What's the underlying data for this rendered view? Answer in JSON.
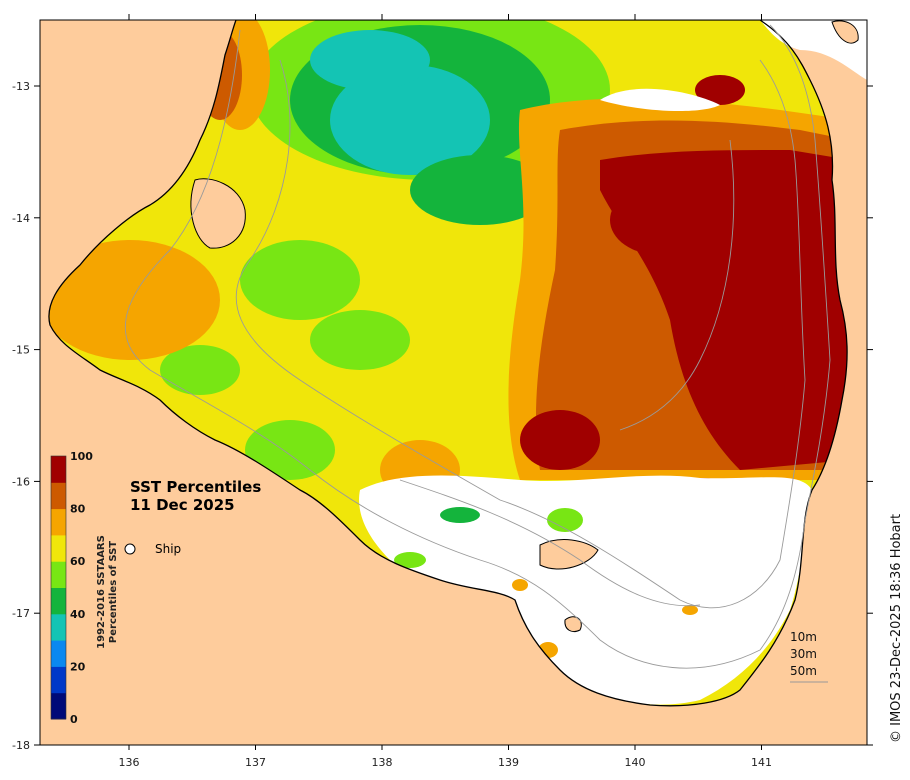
{
  "map": {
    "title_line1": "SST Percentiles",
    "title_line2": "11 Dec 2025",
    "ship_label": "Ship",
    "copyright": "© IMOS 23-Dec-2025 18:36 Hobart",
    "colorbar_title_line1": "1992-2016 SSTAARS",
    "colorbar_title_line2": "Percentiles of SST",
    "colorbar_ticks": [
      "0",
      "20",
      "40",
      "60",
      "80",
      "100"
    ],
    "colorbar_colors": [
      "#000a78",
      "#0038c8",
      "#0a88f0",
      "#14c4b4",
      "#14b43c",
      "#78e614",
      "#f0e60a",
      "#f5a500",
      "#cd5a00",
      "#a00000"
    ],
    "x_ticks": [
      "136",
      "137",
      "138",
      "139",
      "140",
      "141"
    ],
    "y_ticks": [
      "-13",
      "-14",
      "-15",
      "-16",
      "-17",
      "-18"
    ],
    "depth_legend": [
      "10m",
      "30m",
      "50m"
    ],
    "land_color": "#fecc9c",
    "nodata_color": "#ffffff"
  }
}
